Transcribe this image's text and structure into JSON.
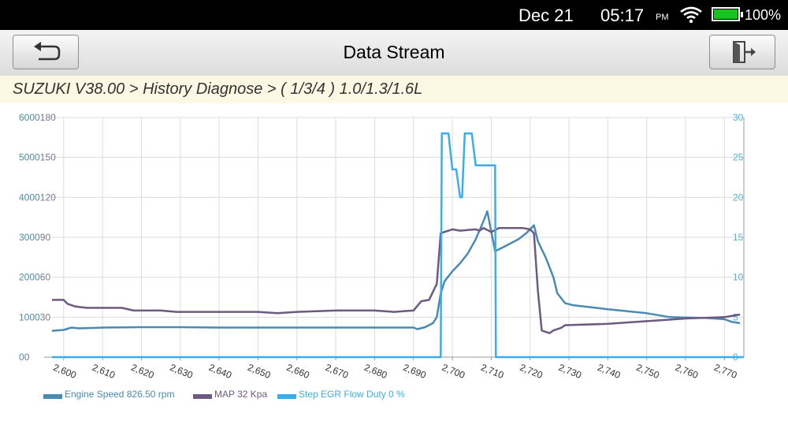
{
  "status": {
    "date": "Dec 21",
    "time": "05:17",
    "ampm": "PM",
    "battery_pct": "100%",
    "battery_level": 1.0
  },
  "header": {
    "title": "Data Stream",
    "back_icon": "back-arrow-icon",
    "exit_icon": "exit-door-icon"
  },
  "breadcrumb": "SUZUKI V38.00 > History Diagnose > ( 1/3/4 ) 1.0/1.3/1.6L",
  "chart_data": {
    "type": "line",
    "grid": true,
    "x_ticks": [
      "2,600",
      "2,610",
      "2,620",
      "2,630",
      "2,640",
      "2,650",
      "2,660",
      "2,670",
      "2,680",
      "2,690",
      "2,700",
      "2,710",
      "2,720",
      "2,730",
      "2,740",
      "2,750",
      "2,760",
      "2,770"
    ],
    "xlim": [
      2597,
      2775
    ],
    "y_axes": {
      "left_outer": {
        "ticks": [
          "0",
          "1000",
          "2000",
          "3000",
          "4000",
          "5000",
          "6000"
        ],
        "ylim": [
          0,
          6000
        ],
        "color": "#4a8ab3"
      },
      "left_inner": {
        "ticks": [
          "0",
          "30",
          "60",
          "90",
          "120",
          "150",
          "180"
        ],
        "ylim": [
          0,
          180
        ],
        "color": "#7b7595"
      },
      "right": {
        "ticks": [
          "0",
          "5",
          "10",
          "15",
          "20",
          "25",
          "30"
        ],
        "ylim": [
          0,
          30
        ],
        "color": "#4fb3e8"
      }
    },
    "series": [
      {
        "name": "Engine Speed 826.50 rpm",
        "color": "#4a8ab3",
        "axis": "left_outer",
        "points": [
          [
            2597,
            660
          ],
          [
            2600,
            680
          ],
          [
            2602,
            740
          ],
          [
            2604,
            720
          ],
          [
            2610,
            740
          ],
          [
            2620,
            750
          ],
          [
            2630,
            750
          ],
          [
            2640,
            740
          ],
          [
            2650,
            740
          ],
          [
            2660,
            740
          ],
          [
            2670,
            740
          ],
          [
            2680,
            740
          ],
          [
            2690,
            740
          ],
          [
            2691,
            700
          ],
          [
            2693,
            750
          ],
          [
            2695,
            850
          ],
          [
            2696,
            1000
          ],
          [
            2697,
            1600
          ],
          [
            2698,
            1900
          ],
          [
            2700,
            2150
          ],
          [
            2702,
            2350
          ],
          [
            2704,
            2600
          ],
          [
            2706,
            2950
          ],
          [
            2708,
            3400
          ],
          [
            2709,
            3650
          ],
          [
            2711,
            2650
          ],
          [
            2713,
            2750
          ],
          [
            2715,
            2850
          ],
          [
            2717,
            2950
          ],
          [
            2719,
            3100
          ],
          [
            2721,
            3300
          ],
          [
            2722,
            2900
          ],
          [
            2724,
            2500
          ],
          [
            2726,
            2000
          ],
          [
            2727,
            1600
          ],
          [
            2729,
            1350
          ],
          [
            2731,
            1300
          ],
          [
            2740,
            1200
          ],
          [
            2750,
            1100
          ],
          [
            2756,
            1000
          ],
          [
            2765,
            980
          ],
          [
            2770,
            950
          ],
          [
            2772,
            880
          ],
          [
            2774,
            850
          ]
        ]
      },
      {
        "name": "MAP 32 Kpa",
        "color": "#6b5a82",
        "axis": "left_inner",
        "points": [
          [
            2597,
            43
          ],
          [
            2600,
            43
          ],
          [
            2601,
            40
          ],
          [
            2603,
            38
          ],
          [
            2606,
            37
          ],
          [
            2615,
            37
          ],
          [
            2618,
            35
          ],
          [
            2625,
            35
          ],
          [
            2629,
            34
          ],
          [
            2640,
            34
          ],
          [
            2650,
            34
          ],
          [
            2655,
            33
          ],
          [
            2660,
            34
          ],
          [
            2670,
            35
          ],
          [
            2680,
            35
          ],
          [
            2685,
            34
          ],
          [
            2690,
            35
          ],
          [
            2692,
            42
          ],
          [
            2694,
            43
          ],
          [
            2696,
            55
          ],
          [
            2697,
            93
          ],
          [
            2698,
            94
          ],
          [
            2700,
            96
          ],
          [
            2702,
            95
          ],
          [
            2706,
            96
          ],
          [
            2707,
            95
          ],
          [
            2708,
            97
          ],
          [
            2710,
            94
          ],
          [
            2712,
            97
          ],
          [
            2718,
            97
          ],
          [
            2720,
            96
          ],
          [
            2721,
            93
          ],
          [
            2722,
            50
          ],
          [
            2723,
            20
          ],
          [
            2724,
            19
          ],
          [
            2725,
            18
          ],
          [
            2726,
            20
          ],
          [
            2728,
            22
          ],
          [
            2729,
            24
          ],
          [
            2740,
            25
          ],
          [
            2750,
            27
          ],
          [
            2755,
            28
          ],
          [
            2760,
            29
          ],
          [
            2770,
            30
          ],
          [
            2772,
            31
          ],
          [
            2774,
            32
          ]
        ]
      },
      {
        "name": "Step EGR Flow Duty 0 %",
        "color": "#3aaeea",
        "axis": "right",
        "points": [
          [
            2597,
            0
          ],
          [
            2697,
            0
          ],
          [
            2697.3,
            28
          ],
          [
            2699,
            28
          ],
          [
            2700,
            23.5
          ],
          [
            2701,
            23.5
          ],
          [
            2702,
            20
          ],
          [
            2702.5,
            20
          ],
          [
            2703.2,
            28
          ],
          [
            2705,
            28
          ],
          [
            2706,
            24
          ],
          [
            2711,
            24
          ],
          [
            2711.2,
            0
          ],
          [
            2775,
            0
          ]
        ]
      }
    ]
  }
}
